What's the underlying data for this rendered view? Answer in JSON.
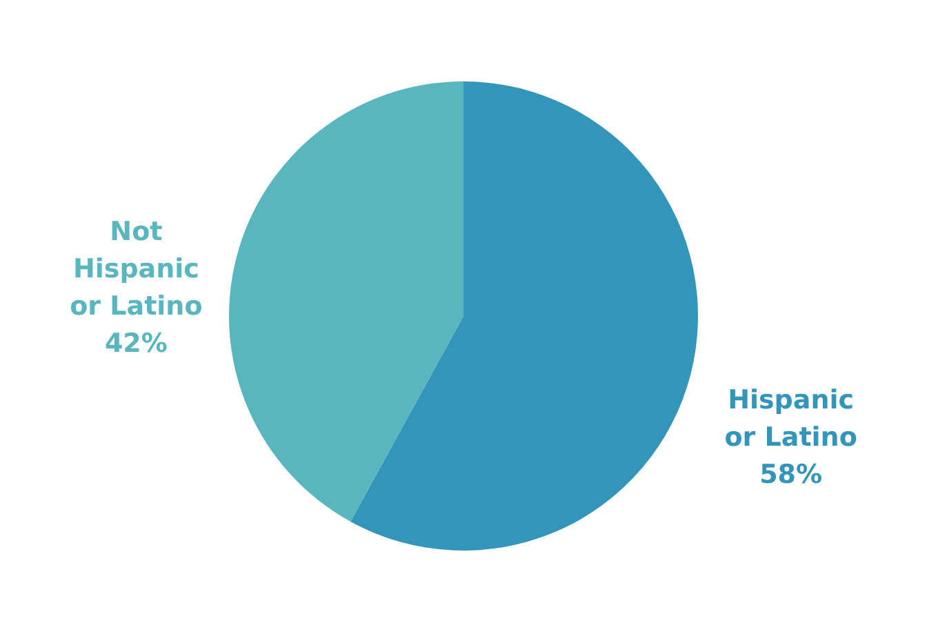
{
  "chart_data": {
    "type": "pie",
    "categories": [
      "Hispanic or Latino",
      "Not Hispanic or Latino"
    ],
    "values": [
      58,
      42
    ],
    "colors": [
      "#3495bb",
      "#59b6bf"
    ],
    "value_labels": [
      "58%",
      "42%"
    ]
  }
}
